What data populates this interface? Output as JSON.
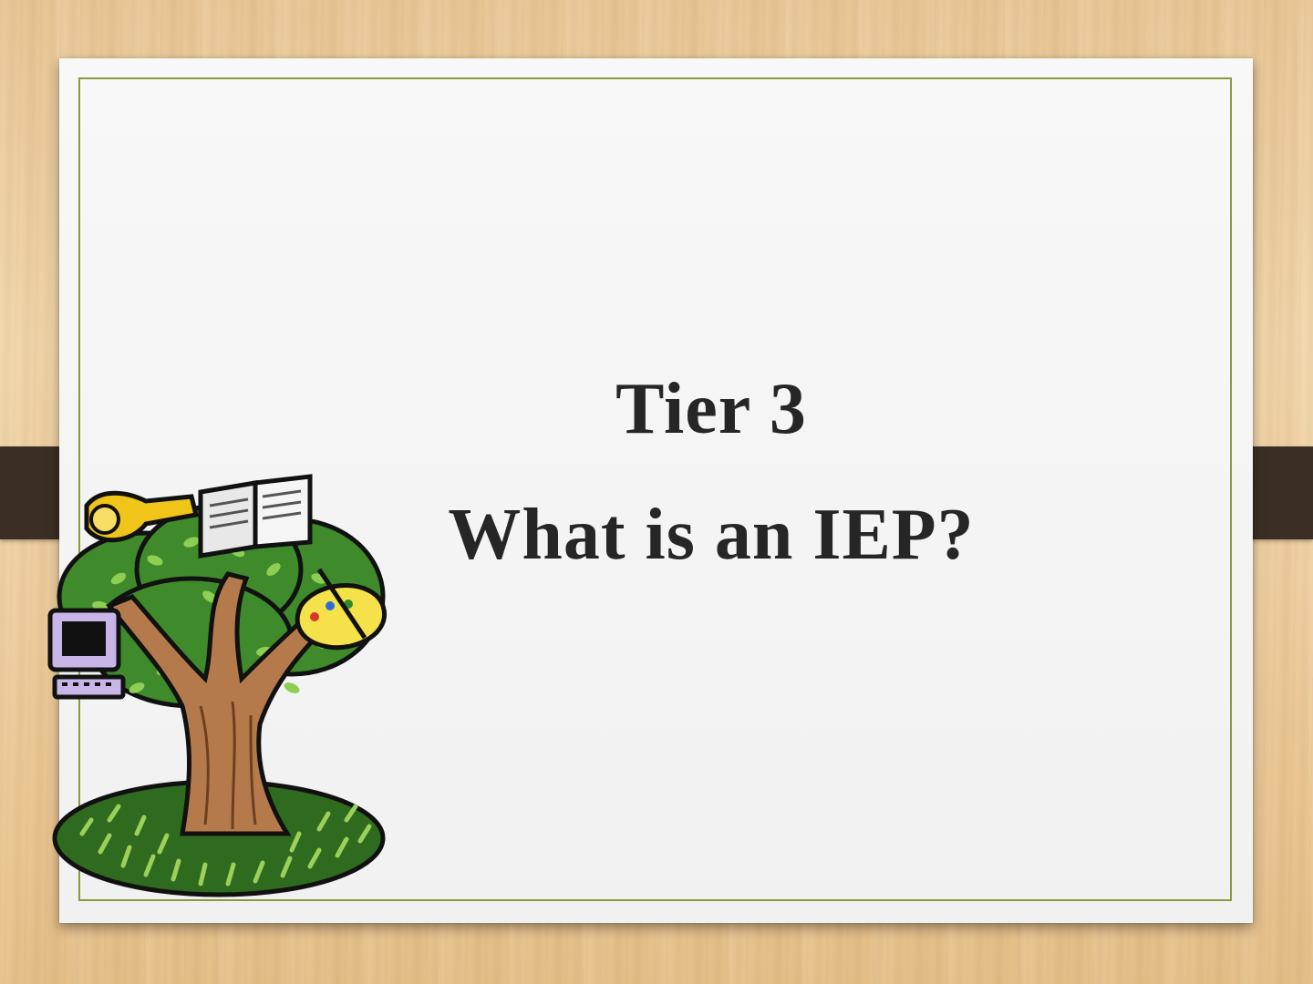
{
  "slide": {
    "title_line1": "Tier 3",
    "title_line2": "What is an IEP?",
    "illustration": "tree-with-school-items-icon"
  },
  "colors": {
    "background_wood": "#eccb9b",
    "slide": "#f4f4f4",
    "border": "#8a9a3a",
    "tabs": "#3b2f25",
    "title_text": "#262626"
  }
}
